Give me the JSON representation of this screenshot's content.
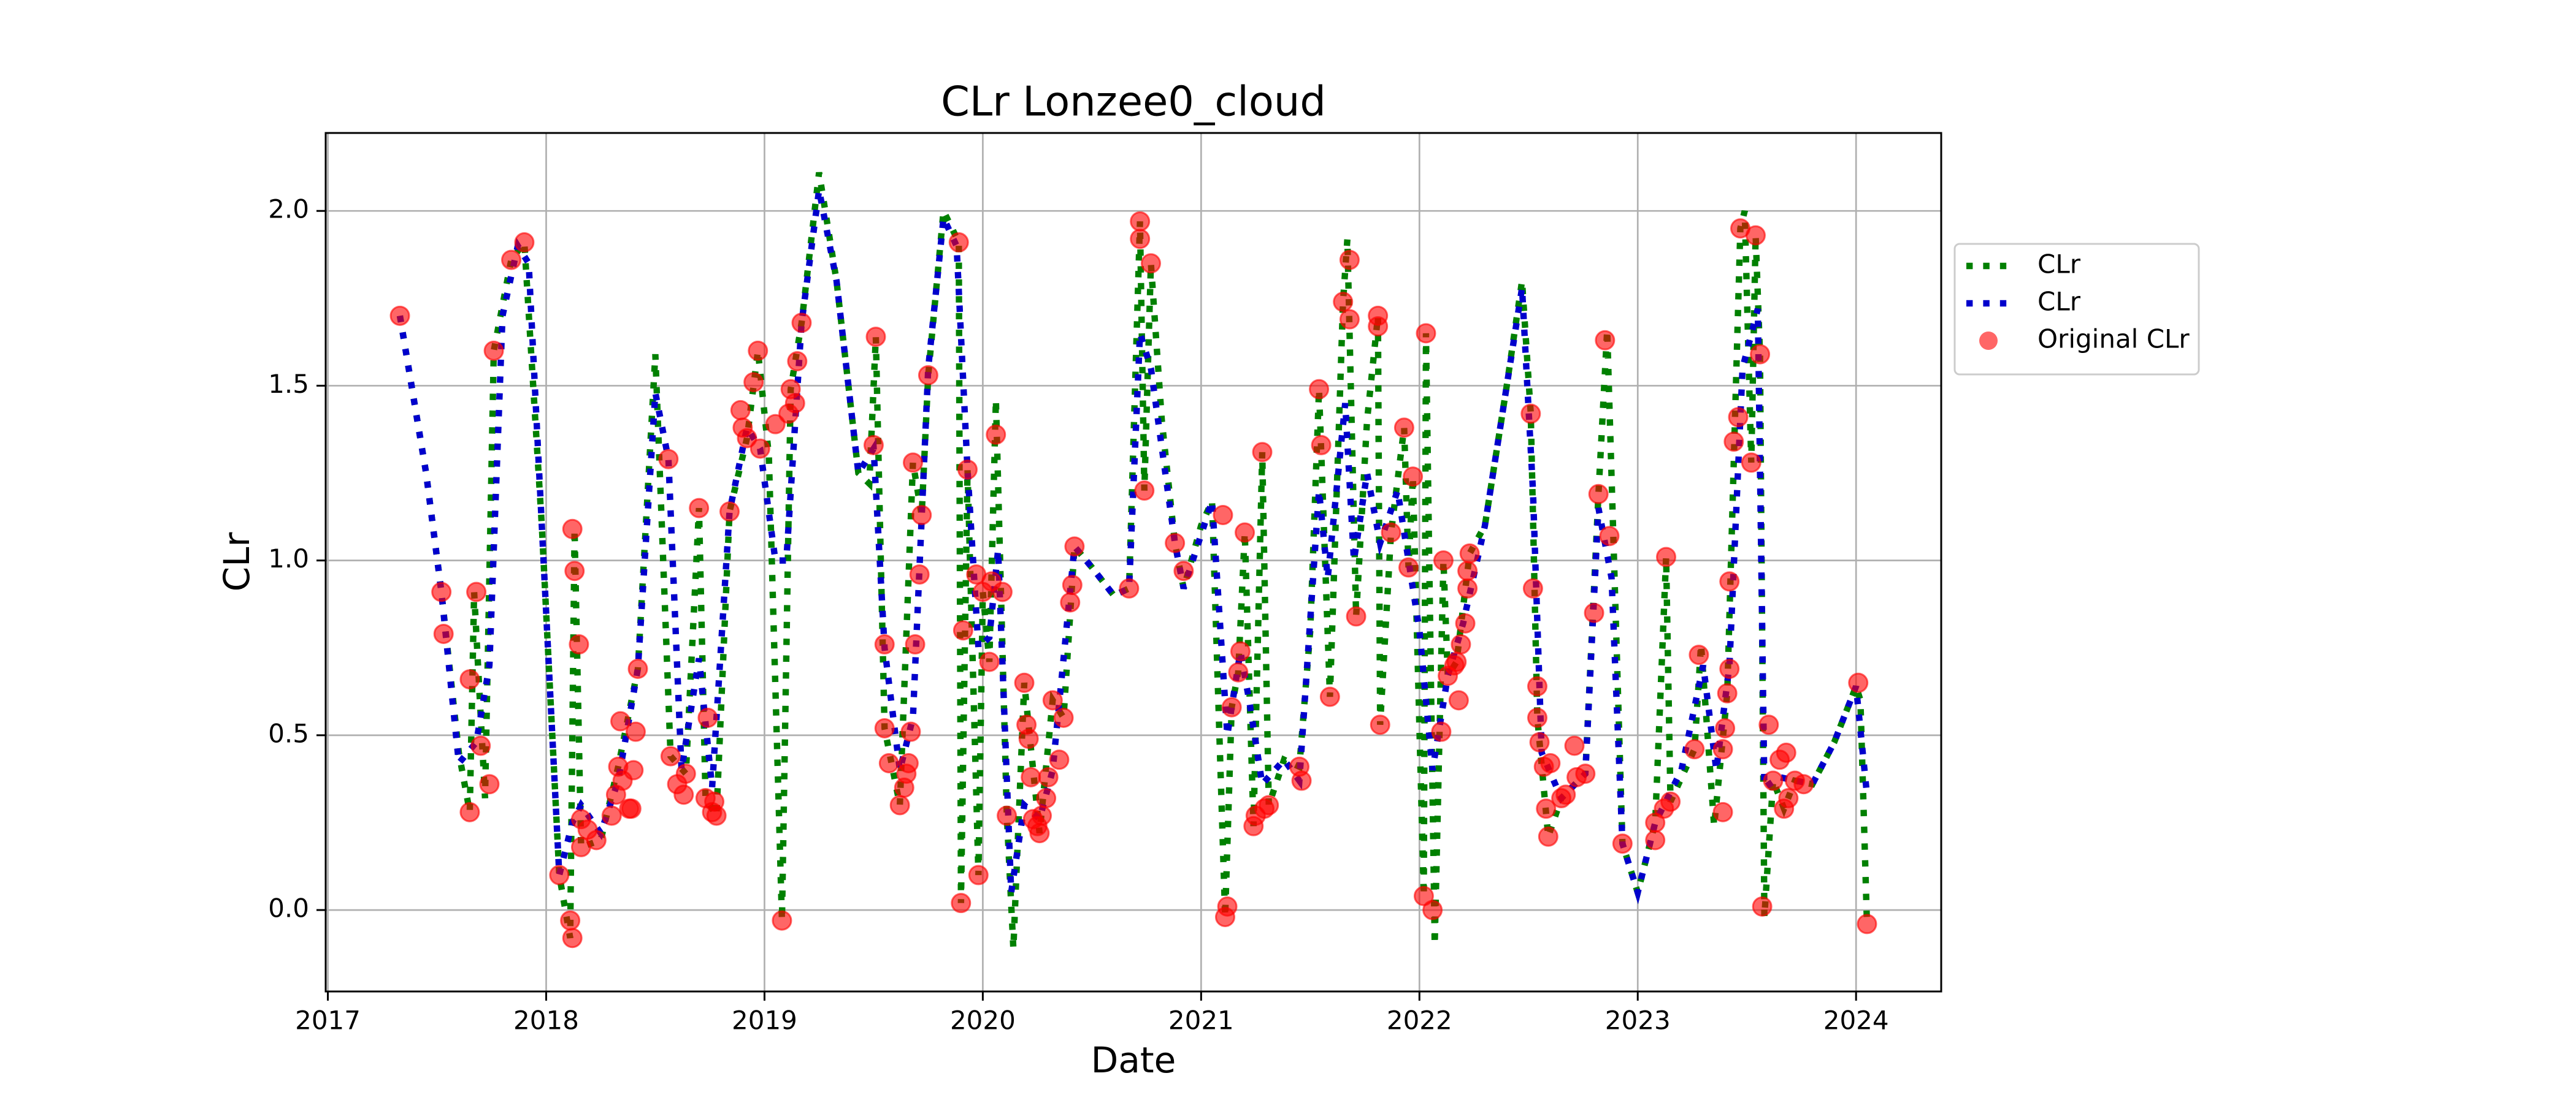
{
  "chart_data": {
    "type": "line",
    "title": "CLr Lonzee0_cloud",
    "x_label": "Date",
    "y_label": "CLr",
    "xlim": [
      2016.99,
      2024.39
    ],
    "xticks": [
      2017,
      2018,
      2019,
      2020,
      2021,
      2022,
      2023,
      2024
    ],
    "ylim": [
      -0.233,
      2.223
    ],
    "yticks": [
      {
        "value": 0,
        "label": "0.0"
      },
      {
        "value": 0.5,
        "label": "0.5"
      },
      {
        "value": 1,
        "label": "1.0"
      },
      {
        "value": 1.5,
        "label": "1.5"
      },
      {
        "value": 2,
        "label": "2.0"
      }
    ],
    "grid": true,
    "legend": "outside-right",
    "series": [
      {
        "name": "CLr",
        "mark": "line",
        "linestyle": "dotted",
        "color": "#008000",
        "x": [
          2017.33,
          2017.45,
          2017.52,
          2017.6,
          2017.65,
          2017.67,
          2017.72,
          2017.76,
          2017.84,
          2017.9,
          2017.98,
          2018.06,
          2018.11,
          2018.13,
          2018.16,
          2018.25,
          2018.33,
          2018.42,
          2018.5,
          2018.57,
          2018.64,
          2018.7,
          2018.73,
          2018.78,
          2018.84,
          2018.92,
          2018.97,
          2019.02,
          2019.08,
          2019.12,
          2019.17,
          2019.25,
          2019.33,
          2019.43,
          2019.48,
          2019.51,
          2019.55,
          2019.62,
          2019.68,
          2019.72,
          2019.75,
          2019.82,
          2019.89,
          2019.9,
          2019.93,
          2019.98,
          2020.0,
          2020.03,
          2020.06,
          2020.11,
          2020.14,
          2020.19,
          2020.26,
          2020.32,
          2020.37,
          2020.42,
          2020.5,
          2020.6,
          2020.67,
          2020.72,
          2020.74,
          2020.77,
          2020.82,
          2020.88,
          2020.92,
          2021.0,
          2021.05,
          2021.11,
          2021.14,
          2021.17,
          2021.2,
          2021.24,
          2021.28,
          2021.31,
          2021.38,
          2021.45,
          2021.5,
          2021.54,
          2021.59,
          2021.65,
          2021.67,
          2021.71,
          2021.76,
          2021.81,
          2021.82,
          2021.87,
          2021.93,
          2021.95,
          2021.97,
          2022.02,
          2022.03,
          2022.07,
          2022.11,
          2022.13,
          2022.17,
          2022.23,
          2022.3,
          2022.4,
          2022.47,
          2022.51,
          2022.54,
          2022.59,
          2022.65,
          2022.76,
          2022.82,
          2022.86,
          2022.93,
          2023.0,
          2023.08,
          2023.13,
          2023.15,
          2023.26,
          2023.29,
          2023.35,
          2023.41,
          2023.47,
          2023.49,
          2023.52,
          2023.54,
          2023.56,
          2023.58,
          2023.62,
          2023.67,
          2023.72,
          2023.8,
          2023.9,
          2024.0,
          2024.02,
          2024.05
        ],
        "values": [
          1.7,
          1.25,
          0.91,
          0.45,
          0.28,
          0.91,
          0.32,
          1.6,
          1.86,
          1.91,
          1.1,
          0.1,
          -0.08,
          1.09,
          0.18,
          0.2,
          0.41,
          0.69,
          1.59,
          0.44,
          0.39,
          1.15,
          0.32,
          0.27,
          1.14,
          1.35,
          1.6,
          1.3,
          -0.03,
          1.49,
          1.68,
          2.11,
          1.8,
          1.25,
          1.22,
          1.64,
          0.52,
          0.3,
          1.28,
          1.13,
          1.53,
          2.0,
          1.91,
          0.02,
          1.26,
          0.1,
          0.91,
          0.71,
          1.46,
          0.27,
          -0.11,
          0.65,
          0.22,
          0.6,
          0.55,
          1.04,
          0.98,
          0.9,
          0.92,
          1.97,
          1.2,
          1.85,
          1.4,
          1.05,
          0.92,
          1.1,
          1.17,
          -0.02,
          0.58,
          0.68,
          1.08,
          0.24,
          1.31,
          0.3,
          0.43,
          0.41,
          0.8,
          1.49,
          0.61,
          1.74,
          1.92,
          0.84,
          1.4,
          1.7,
          0.53,
          1.08,
          1.38,
          0.98,
          1.24,
          0.04,
          1.65,
          -0.1,
          1.0,
          0.67,
          0.71,
          1.02,
          1.1,
          1.5,
          1.8,
          1.42,
          0.55,
          0.21,
          0.32,
          0.39,
          1.19,
          1.66,
          0.19,
          0.05,
          0.25,
          1.01,
          0.31,
          0.46,
          0.76,
          0.24,
          0.62,
          1.95,
          2.0,
          1.28,
          1.93,
          1.59,
          -0.02,
          0.37,
          0.29,
          0.37,
          0.36,
          0.48,
          0.64,
          0.6,
          -0.04
        ]
      },
      {
        "name": "CLr",
        "mark": "line",
        "linestyle": "dotted",
        "color": "#0000cc",
        "x": [
          2017.33,
          2017.45,
          2017.52,
          2017.6,
          2017.68,
          2017.74,
          2017.8,
          2017.87,
          2017.92,
          2017.98,
          2018.06,
          2018.12,
          2018.16,
          2018.25,
          2018.33,
          2018.42,
          2018.5,
          2018.56,
          2018.62,
          2018.7,
          2018.76,
          2018.84,
          2018.92,
          2018.98,
          2019.05,
          2019.1,
          2019.17,
          2019.25,
          2019.33,
          2019.43,
          2019.5,
          2019.55,
          2019.62,
          2019.68,
          2019.75,
          2019.82,
          2019.88,
          2019.93,
          2019.98,
          2020.03,
          2020.07,
          2020.13,
          2020.19,
          2020.26,
          2020.32,
          2020.42,
          2020.5,
          2020.6,
          2020.67,
          2020.72,
          2020.77,
          2020.88,
          2020.92,
          2021.05,
          2021.12,
          2021.18,
          2021.22,
          2021.28,
          2021.38,
          2021.45,
          2021.54,
          2021.58,
          2021.66,
          2021.7,
          2021.76,
          2021.82,
          2021.9,
          2022.0,
          2022.06,
          2022.13,
          2022.2,
          2022.3,
          2022.4,
          2022.47,
          2022.52,
          2022.56,
          2022.65,
          2022.76,
          2022.82,
          2022.88,
          2022.93,
          2023.0,
          2023.08,
          2023.2,
          2023.3,
          2023.36,
          2023.42,
          2023.48,
          2023.55,
          2023.58,
          2023.65,
          2023.8,
          2023.9,
          2024.0,
          2024.05
        ],
        "values": [
          1.7,
          1.25,
          0.91,
          0.42,
          0.48,
          0.7,
          1.7,
          1.9,
          1.85,
          1.1,
          0.1,
          0.25,
          0.3,
          0.22,
          0.37,
          0.69,
          1.48,
          1.29,
          0.4,
          0.72,
          0.35,
          1.14,
          1.38,
          1.32,
          1.0,
          1.0,
          1.68,
          2.06,
          1.8,
          1.25,
          1.32,
          0.75,
          0.4,
          0.55,
          1.55,
          1.98,
          1.9,
          1.26,
          0.75,
          0.78,
          1.03,
          0.05,
          0.3,
          0.26,
          0.4,
          1.04,
          0.98,
          0.9,
          0.92,
          1.65,
          1.55,
          1.05,
          0.92,
          1.17,
          0.5,
          0.74,
          0.6,
          0.36,
          0.43,
          0.37,
          1.2,
          0.95,
          1.45,
          1.0,
          1.25,
          1.05,
          1.2,
          0.8,
          0.4,
          0.67,
          0.82,
          1.1,
          1.5,
          1.78,
          1.2,
          0.45,
          0.32,
          0.39,
          1.15,
          0.95,
          0.19,
          0.05,
          0.25,
          0.4,
          0.7,
          0.4,
          0.7,
          1.55,
          1.72,
          0.35,
          0.38,
          0.36,
          0.48,
          0.64,
          0.33
        ]
      },
      {
        "name": "Original CLr",
        "mark": "scatter",
        "color": "#ff0000",
        "opacity": 0.6,
        "x": [
          2017.33,
          2017.52,
          2017.53,
          2017.65,
          2017.65,
          2017.68,
          2017.7,
          2017.74,
          2017.76,
          2017.84,
          2017.9,
          2018.06,
          2018.11,
          2018.12,
          2018.12,
          2018.13,
          2018.15,
          2018.16,
          2018.16,
          2018.19,
          2018.23,
          2018.3,
          2018.32,
          2018.33,
          2018.34,
          2018.35,
          2018.38,
          2018.4,
          2018.41,
          2018.42,
          2018.39,
          2018.56,
          2018.57,
          2018.6,
          2018.63,
          2018.64,
          2018.7,
          2018.73,
          2018.74,
          2018.76,
          2018.77,
          2018.78,
          2018.84,
          2018.89,
          2018.9,
          2018.92,
          2018.95,
          2018.97,
          2018.98,
          2019.05,
          2019.08,
          2019.11,
          2019.12,
          2019.14,
          2019.15,
          2019.17,
          2019.5,
          2019.51,
          2019.55,
          2019.55,
          2019.57,
          2019.62,
          2019.64,
          2019.65,
          2019.66,
          2019.67,
          2019.68,
          2019.69,
          2019.71,
          2019.72,
          2019.75,
          2019.89,
          2019.9,
          2019.91,
          2019.93,
          2019.97,
          2019.98,
          2020.0,
          2020.03,
          2020.04,
          2020.06,
          2020.09,
          2020.11,
          2020.19,
          2020.2,
          2020.21,
          2020.22,
          2020.23,
          2020.25,
          2020.26,
          2020.27,
          2020.29,
          2020.3,
          2020.32,
          2020.35,
          2020.37,
          2020.4,
          2020.41,
          2020.42,
          2020.67,
          2020.72,
          2020.72,
          2020.74,
          2020.77,
          2020.88,
          2020.92,
          2021.11,
          2021.12,
          2021.1,
          2021.14,
          2021.17,
          2021.18,
          2021.2,
          2021.24,
          2021.25,
          2021.28,
          2021.29,
          2021.31,
          2021.45,
          2021.46,
          2021.54,
          2021.55,
          2021.59,
          2021.65,
          2021.68,
          2021.68,
          2021.71,
          2021.81,
          2021.81,
          2021.82,
          2021.87,
          2021.93,
          2021.95,
          2021.97,
          2022.02,
          2022.03,
          2022.06,
          2022.1,
          2022.11,
          2022.13,
          2022.16,
          2022.17,
          2022.18,
          2022.19,
          2022.21,
          2022.22,
          2022.22,
          2022.23,
          2022.51,
          2022.52,
          2022.54,
          2022.54,
          2022.55,
          2022.57,
          2022.58,
          2022.59,
          2022.6,
          2022.65,
          2022.67,
          2022.71,
          2022.72,
          2022.76,
          2022.8,
          2022.82,
          2022.85,
          2022.87,
          2022.93,
          2023.08,
          2023.08,
          2023.12,
          2023.13,
          2023.15,
          2023.26,
          2023.28,
          2023.39,
          2023.39,
          2023.4,
          2023.41,
          2023.42,
          2023.42,
          2023.44,
          2023.46,
          2023.47,
          2023.52,
          2023.54,
          2023.56,
          2023.57,
          2023.6,
          2023.62,
          2023.65,
          2023.67,
          2023.68,
          2023.69,
          2023.72,
          2023.76,
          2024.01,
          2024.05
        ],
        "values": [
          1.7,
          0.91,
          0.79,
          0.28,
          0.66,
          0.91,
          0.47,
          0.36,
          1.6,
          1.86,
          1.91,
          0.1,
          -0.03,
          -0.08,
          1.09,
          0.97,
          0.76,
          0.26,
          0.18,
          0.23,
          0.2,
          0.27,
          0.33,
          0.41,
          0.54,
          0.37,
          0.29,
          0.4,
          0.51,
          0.69,
          0.29,
          1.29,
          0.44,
          0.36,
          0.33,
          0.39,
          1.15,
          0.32,
          0.55,
          0.28,
          0.31,
          0.27,
          1.14,
          1.43,
          1.38,
          1.35,
          1.51,
          1.6,
          1.32,
          1.39,
          -0.03,
          1.42,
          1.49,
          1.45,
          1.57,
          1.68,
          1.33,
          1.64,
          0.52,
          0.76,
          0.42,
          0.3,
          0.35,
          0.39,
          0.42,
          0.51,
          1.28,
          0.76,
          0.96,
          1.13,
          1.53,
          1.91,
          0.02,
          0.8,
          1.26,
          0.96,
          0.1,
          0.91,
          0.71,
          0.94,
          1.36,
          0.91,
          0.27,
          0.65,
          0.53,
          0.49,
          0.38,
          0.26,
          0.24,
          0.22,
          0.27,
          0.32,
          0.38,
          0.6,
          0.43,
          0.55,
          0.88,
          0.93,
          1.04,
          0.92,
          1.97,
          1.92,
          1.2,
          1.85,
          1.05,
          0.97,
          -0.02,
          0.01,
          1.13,
          0.58,
          0.68,
          0.74,
          1.08,
          0.24,
          0.27,
          1.31,
          0.29,
          0.3,
          0.41,
          0.37,
          1.49,
          1.33,
          0.61,
          1.74,
          1.86,
          1.69,
          0.84,
          1.7,
          1.67,
          0.53,
          1.08,
          1.38,
          0.98,
          1.24,
          0.04,
          1.65,
          0.0,
          0.51,
          1.0,
          0.67,
          0.7,
          0.71,
          0.6,
          0.76,
          0.82,
          0.92,
          0.97,
          1.02,
          1.42,
          0.92,
          0.64,
          0.55,
          0.48,
          0.41,
          0.29,
          0.21,
          0.42,
          0.32,
          0.33,
          0.47,
          0.38,
          0.39,
          0.85,
          1.19,
          1.63,
          1.07,
          0.19,
          0.2,
          0.25,
          0.29,
          1.01,
          0.31,
          0.46,
          0.73,
          0.28,
          0.46,
          0.52,
          0.62,
          0.69,
          0.94,
          1.34,
          1.41,
          1.95,
          1.28,
          1.93,
          1.59,
          0.01,
          0.53,
          0.37,
          0.43,
          0.29,
          0.45,
          0.32,
          0.37,
          0.36,
          0.65,
          -0.04
        ]
      }
    ]
  }
}
